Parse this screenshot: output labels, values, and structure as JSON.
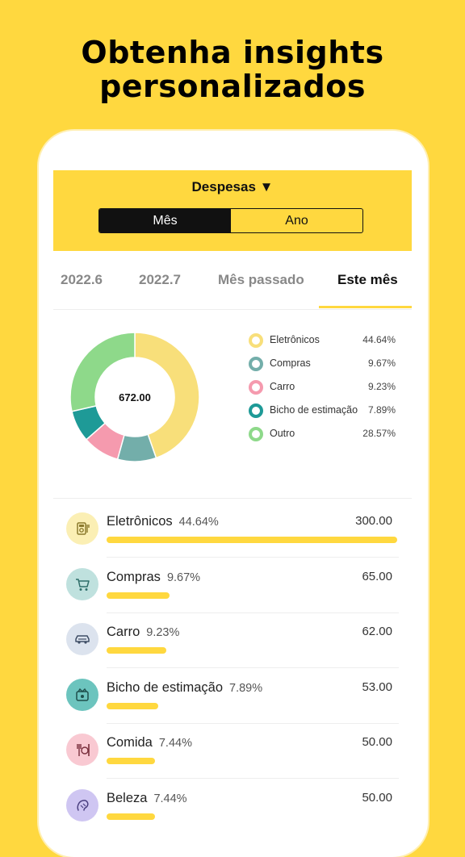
{
  "headline": {
    "line1": "Obtenha insights",
    "line2": "personalizados"
  },
  "header": {
    "dropdown_label": "Despesas ▼"
  },
  "segment": {
    "options": [
      "Mês",
      "Ano"
    ],
    "selected": "Mês"
  },
  "tabs": [
    {
      "label": "2022.6"
    },
    {
      "label": "2022.7"
    },
    {
      "label": "Mês passado"
    },
    {
      "label": "Este mês",
      "active": true
    }
  ],
  "donut": {
    "center_label": "672.00"
  },
  "chart_data": {
    "type": "pie",
    "categories": [
      "Eletrônicos",
      "Compras",
      "Carro",
      "Bicho de estimação",
      "Outro"
    ],
    "values": [
      44.64,
      9.67,
      9.23,
      7.89,
      28.57
    ],
    "value_labels": [
      "44.64%",
      "9.67%",
      "9.23%",
      "7.89%",
      "28.57%"
    ],
    "colors": [
      "#F8DF7A",
      "#73AEAA",
      "#F59AAE",
      "#1E9A97",
      "#8ED98A"
    ]
  },
  "categories": [
    {
      "name": "Eletrônicos",
      "percent": "44.64%",
      "amount": "300.00",
      "share": 1.0,
      "icon": "appliance-icon",
      "icon_bg": "#FBEFB4",
      "color": "#8B7A2C"
    },
    {
      "name": "Compras",
      "percent": "9.67%",
      "amount": "65.00",
      "share": 0.2167,
      "icon": "shopping-cart-icon",
      "icon_bg": "#BFE1DE",
      "color": "#2F6F6A"
    },
    {
      "name": "Carro",
      "percent": "9.23%",
      "amount": "62.00",
      "share": 0.2067,
      "icon": "car-icon",
      "icon_bg": "#DCE3EE",
      "color": "#3F4E66"
    },
    {
      "name": "Bicho de estimação",
      "percent": "7.89%",
      "amount": "53.00",
      "share": 0.1767,
      "icon": "pet-icon",
      "icon_bg": "#6CC4BE",
      "color": "#1E4F4C"
    },
    {
      "name": "Comida",
      "percent": "7.44%",
      "amount": "50.00",
      "share": 0.1667,
      "icon": "food-icon",
      "icon_bg": "#F9C9D2",
      "color": "#7A2F3D"
    },
    {
      "name": "Beleza",
      "percent": "7.44%",
      "amount": "50.00",
      "share": 0.1667,
      "icon": "beauty-icon",
      "icon_bg": "#CFC6F2",
      "color": "#4A3F80"
    }
  ]
}
